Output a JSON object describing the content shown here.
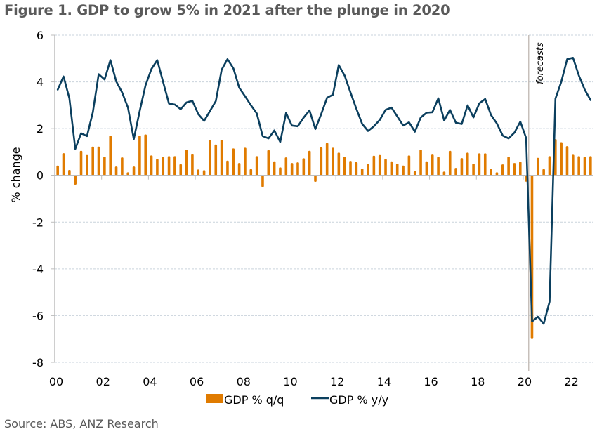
{
  "figure": {
    "title": "Figure 1. GDP to grow 5% in 2021 after the plunge in 2020",
    "source": "Source: ABS, ANZ Research"
  },
  "colors": {
    "bar": "#e07b00",
    "line": "#0b3f5e",
    "grid": "#c9d3dc",
    "axis": "#bdbdbd",
    "forecast_line": "#b9b0a9",
    "title_text": "#5a5a5a"
  },
  "chart_data": {
    "type": "bar+line",
    "title": "Figure 1. GDP to grow 5% in 2021 after the plunge in 2020",
    "xlabel": "",
    "ylabel": "% change",
    "ylim": [
      -8,
      6
    ],
    "yticks": [
      6,
      4,
      2,
      0,
      -2,
      -4,
      -6,
      -8
    ],
    "ytick_labels": [
      "6",
      "4",
      "2",
      "0",
      "-2",
      "-4",
      "-6",
      "-8"
    ],
    "x_start": "2000 Q1",
    "x_end": "2022 Q4",
    "periods_per_year": 4,
    "xtick_years": [
      2000,
      2002,
      2004,
      2006,
      2008,
      2010,
      2012,
      2014,
      2016,
      2018,
      2020,
      2022
    ],
    "xtick_labels": [
      "00",
      "02",
      "04",
      "06",
      "08",
      "10",
      "12",
      "14",
      "16",
      "18",
      "20",
      "22"
    ],
    "grid": "horizontal dotted",
    "legend_position": "bottom-center",
    "annotations": [
      {
        "text": "forecasts",
        "at": "2020 Q2",
        "style": "vertical line with rotated italic label"
      }
    ],
    "series": [
      {
        "name": "GDP % q/q",
        "type": "bar",
        "values": [
          0.42,
          0.95,
          0.23,
          -0.4,
          1.05,
          0.87,
          1.23,
          1.23,
          0.8,
          1.7,
          0.38,
          0.77,
          0.13,
          0.38,
          1.7,
          1.75,
          0.85,
          0.7,
          0.8,
          0.82,
          0.82,
          0.48,
          1.1,
          0.9,
          0.25,
          0.22,
          1.52,
          1.32,
          1.52,
          0.63,
          1.15,
          0.53,
          1.18,
          0.27,
          0.82,
          -0.5,
          1.08,
          0.6,
          0.34,
          0.77,
          0.53,
          0.56,
          0.73,
          1.05,
          -0.28,
          1.2,
          1.39,
          1.18,
          0.97,
          0.8,
          0.62,
          0.57,
          0.29,
          0.5,
          0.84,
          0.87,
          0.7,
          0.6,
          0.5,
          0.42,
          0.85,
          0.18,
          1.1,
          0.6,
          0.89,
          0.79,
          0.16,
          1.05,
          0.32,
          0.74,
          0.97,
          0.5,
          0.94,
          0.94,
          0.27,
          0.13,
          0.47,
          0.8,
          0.53,
          0.58,
          -0.27,
          -7.0,
          0.75,
          0.27,
          0.82,
          1.55,
          1.42,
          1.25,
          0.88,
          0.82,
          0.79,
          0.82
        ]
      },
      {
        "name": "GDP % y/y",
        "type": "line",
        "values": [
          3.67,
          4.23,
          3.3,
          1.13,
          1.8,
          1.68,
          2.7,
          4.33,
          4.1,
          4.93,
          4.02,
          3.55,
          2.9,
          1.55,
          2.75,
          3.85,
          4.55,
          4.93,
          4.0,
          3.07,
          3.03,
          2.83,
          3.12,
          3.19,
          2.62,
          2.33,
          2.75,
          3.18,
          4.52,
          4.97,
          4.58,
          3.75,
          3.38,
          3.0,
          2.65,
          1.68,
          1.58,
          1.92,
          1.43,
          2.67,
          2.13,
          2.1,
          2.47,
          2.78,
          1.98,
          2.62,
          3.32,
          3.45,
          4.72,
          4.27,
          3.55,
          2.85,
          2.2,
          1.9,
          2.1,
          2.37,
          2.8,
          2.9,
          2.52,
          2.13,
          2.27,
          1.87,
          2.48,
          2.68,
          2.7,
          3.3,
          2.35,
          2.8,
          2.25,
          2.2,
          3.0,
          2.48,
          3.08,
          3.27,
          2.58,
          2.22,
          1.7,
          1.58,
          1.83,
          2.3,
          1.6,
          -6.25,
          -6.05,
          -6.35,
          -5.4,
          3.28,
          4.0,
          4.97,
          5.03,
          4.27,
          3.67,
          3.22
        ]
      }
    ],
    "forecast_start_index": 81
  }
}
